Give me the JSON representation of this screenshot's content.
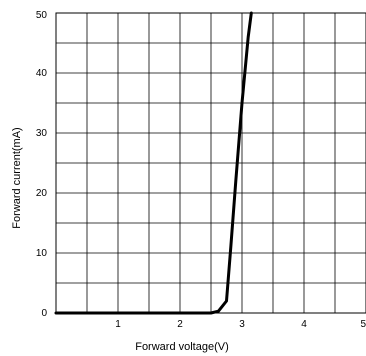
{
  "chart_data": {
    "type": "line",
    "xlabel": "Forward voltage(V)",
    "ylabel": "Forward current(mA)",
    "xlim": [
      0,
      5
    ],
    "ylim": [
      0,
      50
    ],
    "xticks": [
      "1",
      "2",
      "3",
      "4",
      "5"
    ],
    "yticks": [
      "0",
      "10",
      "20",
      "30",
      "40",
      "50"
    ],
    "grid": true,
    "series": [
      {
        "x": [
          0,
          2.5,
          2.62,
          2.75,
          2.82,
          2.9,
          3.0,
          3.1,
          3.15
        ],
        "y": [
          0,
          0,
          0.3,
          2,
          11,
          22,
          35,
          46,
          50
        ]
      }
    ]
  }
}
